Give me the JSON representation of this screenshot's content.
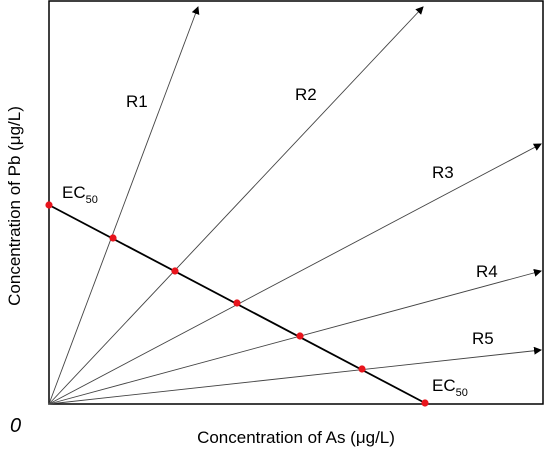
{
  "axes": {
    "x_title": "Concentration of As (μg/L)",
    "y_title": "Concentration of Pb (μg/L)",
    "origin_label": "0"
  },
  "rays": [
    {
      "label": "R1"
    },
    {
      "label": "R2"
    },
    {
      "label": "R3"
    },
    {
      "label": "R4"
    },
    {
      "label": "R5"
    }
  ],
  "ec50": {
    "base": "EC",
    "subscript": "50"
  },
  "colors": {
    "line": "#000000",
    "ray": "#444444",
    "point": "#e8141c",
    "frame": "#000000"
  }
}
